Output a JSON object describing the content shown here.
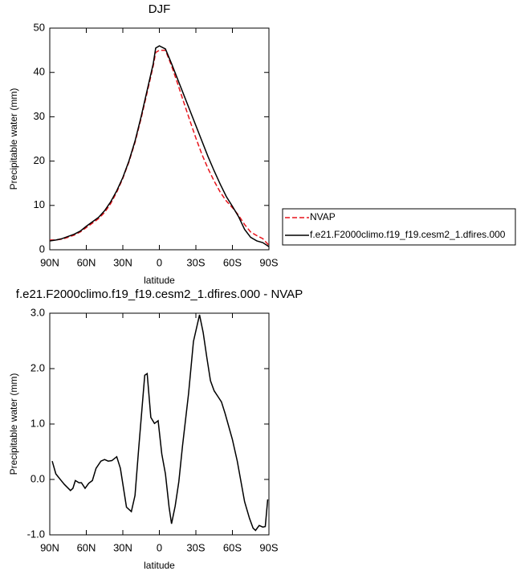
{
  "chart_data": [
    {
      "type": "line",
      "title": "DJF",
      "xlabel": "latitude",
      "ylabel": "Precipitable water (mm)",
      "x": [
        90,
        85,
        80,
        75,
        70,
        65,
        60,
        55,
        50,
        45,
        40,
        35,
        30,
        25,
        20,
        15,
        10,
        5,
        3,
        0,
        -5,
        -10,
        -15,
        -20,
        -25,
        -30,
        -35,
        -40,
        -45,
        -50,
        -55,
        -60,
        -65,
        -70,
        -75,
        -80,
        -85,
        -90
      ],
      "series": [
        {
          "name": "NVAP",
          "color": "#e8141c",
          "dash": true,
          "values": [
            2.2,
            2.2,
            2.4,
            2.8,
            3.3,
            4.0,
            5.0,
            6.0,
            7.0,
            8.4,
            10.4,
            13,
            16.1,
            19.8,
            24.2,
            29.6,
            35.5,
            41.5,
            44.5,
            45,
            45,
            41.5,
            37.5,
            33.3,
            29.2,
            25.2,
            21.5,
            18.3,
            15.5,
            13,
            11,
            9.5,
            7.8,
            5.7,
            4,
            3.2,
            2.5,
            1.0
          ]
        },
        {
          "name": "f.e21.F2000climo.f19_f19.cesm2_1.dfires.000",
          "color": "#000000",
          "dash": false,
          "values": [
            2.0,
            2.2,
            2.5,
            3.0,
            3.5,
            4.2,
            5.3,
            6.3,
            7.3,
            8.8,
            10.8,
            13.3,
            16.3,
            20,
            24.5,
            30,
            36,
            42,
            45.5,
            46,
            45.3,
            42,
            38.5,
            35,
            31.5,
            28,
            24.5,
            21,
            17.8,
            14.8,
            12,
            9.8,
            7.5,
            4.6,
            2.8,
            2,
            1.6,
            0.7
          ]
        }
      ],
      "xlim": [
        90,
        -90
      ],
      "ylim": [
        0,
        50
      ],
      "xticks": [
        {
          "value": 90,
          "label": "90N"
        },
        {
          "value": 60,
          "label": "60N"
        },
        {
          "value": 30,
          "label": "30N"
        },
        0,
        {
          "value": -30,
          "label": "30S"
        },
        {
          "value": -60,
          "label": "60S"
        },
        {
          "value": -90,
          "label": "90S"
        }
      ],
      "yticks": [
        0,
        10,
        20,
        30,
        40,
        50
      ],
      "legend": "right"
    },
    {
      "type": "line",
      "title": "f.e21.F2000climo.f19_f19.cesm2_1.dfires.000 - NVAP",
      "xlabel": "latitude",
      "ylabel": "Precipitable water (mm)",
      "x": [
        88,
        85,
        81,
        78,
        73,
        71,
        69,
        66,
        64,
        61,
        58,
        55,
        52,
        48,
        45,
        42,
        39,
        35,
        32,
        27,
        23,
        20,
        17,
        12,
        10,
        7,
        4,
        1,
        -2,
        -5,
        -8,
        -10,
        -13,
        -16,
        -19,
        -24,
        -28,
        -33,
        -36,
        -39,
        -42,
        -45,
        -48,
        -51,
        -54,
        -60,
        -64,
        -70,
        -74,
        -77,
        -79,
        -82,
        -85,
        -87,
        -89
      ],
      "series": [
        {
          "color": "#000000",
          "dash": false,
          "values": [
            0.33,
            0.1,
            -0.01,
            -0.09,
            -0.2,
            -0.16,
            -0.02,
            -0.06,
            -0.06,
            -0.16,
            -0.07,
            -0.02,
            0.2,
            0.33,
            0.36,
            0.33,
            0.34,
            0.41,
            0.2,
            -0.5,
            -0.58,
            -0.29,
            0.55,
            1.88,
            1.91,
            1.12,
            1.01,
            1.06,
            0.46,
            0.1,
            -0.5,
            -0.8,
            -0.48,
            -0.04,
            0.6,
            1.55,
            2.49,
            2.97,
            2.65,
            2.2,
            1.78,
            1.6,
            1.5,
            1.4,
            1.19,
            0.72,
            0.33,
            -0.4,
            -0.7,
            -0.88,
            -0.92,
            -0.83,
            -0.86,
            -0.85,
            -0.36
          ]
        }
      ],
      "xlim": [
        90,
        -90
      ],
      "ylim": [
        -1,
        3
      ],
      "xticks": [
        {
          "value": 90,
          "label": "90N"
        },
        {
          "value": 60,
          "label": "60N"
        },
        {
          "value": 30,
          "label": "30N"
        },
        0,
        {
          "value": -30,
          "label": "30S"
        },
        {
          "value": -60,
          "label": "60S"
        },
        {
          "value": -90,
          "label": "90S"
        }
      ],
      "yticks": [
        {
          "value": 3,
          "label": "3.0"
        },
        {
          "value": 2,
          "label": "2.0"
        },
        {
          "value": 1,
          "label": "1.0"
        },
        {
          "value": 0,
          "label": "0.0"
        },
        {
          "value": -1,
          "label": "-1.0"
        }
      ]
    }
  ]
}
